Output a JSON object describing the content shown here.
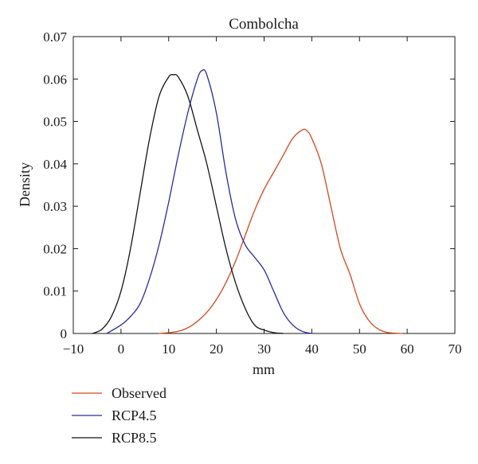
{
  "chart_data": {
    "type": "line",
    "title": "Combolcha",
    "xlabel": "mm",
    "ylabel": "Density",
    "xlim": [
      -10,
      70
    ],
    "ylim": [
      0,
      0.07
    ],
    "x_ticks": [
      "−10",
      "0",
      "10",
      "20",
      "30",
      "40",
      "50",
      "60",
      "70"
    ],
    "y_ticks": [
      "0",
      "0.01",
      "0.02",
      "0.03",
      "0.04",
      "0.05",
      "0.06",
      "0.07"
    ],
    "grid": false,
    "legend_position": "bottom-left, outside plot",
    "series": [
      {
        "name": "Observed",
        "color": "#d4471f",
        "x": [
          8,
          12,
          15,
          18,
          20,
          22,
          24,
          26,
          28,
          30,
          32,
          34,
          36,
          38,
          39,
          40,
          42,
          44,
          46,
          48,
          50,
          52,
          54,
          56,
          59
        ],
        "y": [
          0,
          0.0005,
          0.002,
          0.005,
          0.008,
          0.012,
          0.017,
          0.023,
          0.029,
          0.034,
          0.038,
          0.042,
          0.046,
          0.048,
          0.0478,
          0.046,
          0.04,
          0.03,
          0.02,
          0.014,
          0.007,
          0.003,
          0.001,
          0.0002,
          0
        ]
      },
      {
        "name": "RCP4.5",
        "color": "#2b2aa0",
        "x": [
          -3,
          0,
          2,
          4,
          6,
          8,
          10,
          12,
          14,
          16,
          17,
          18,
          20,
          22,
          24,
          26,
          28,
          30,
          32,
          34,
          36,
          38,
          40
        ],
        "y": [
          0,
          0.002,
          0.004,
          0.007,
          0.013,
          0.021,
          0.031,
          0.042,
          0.052,
          0.06,
          0.062,
          0.061,
          0.052,
          0.038,
          0.027,
          0.021,
          0.018,
          0.015,
          0.01,
          0.005,
          0.002,
          0.0005,
          0
        ]
      },
      {
        "name": "RCP8.5",
        "color": "#141414",
        "x": [
          -6,
          -4,
          -2,
          0,
          2,
          4,
          6,
          8,
          10,
          11,
          12,
          14,
          16,
          18,
          20,
          22,
          24,
          26,
          28,
          30,
          32,
          34
        ],
        "y": [
          0,
          0.001,
          0.004,
          0.01,
          0.02,
          0.033,
          0.046,
          0.056,
          0.0605,
          0.061,
          0.0605,
          0.056,
          0.048,
          0.04,
          0.03,
          0.02,
          0.012,
          0.006,
          0.002,
          0.0008,
          0.0002,
          0
        ]
      }
    ]
  }
}
